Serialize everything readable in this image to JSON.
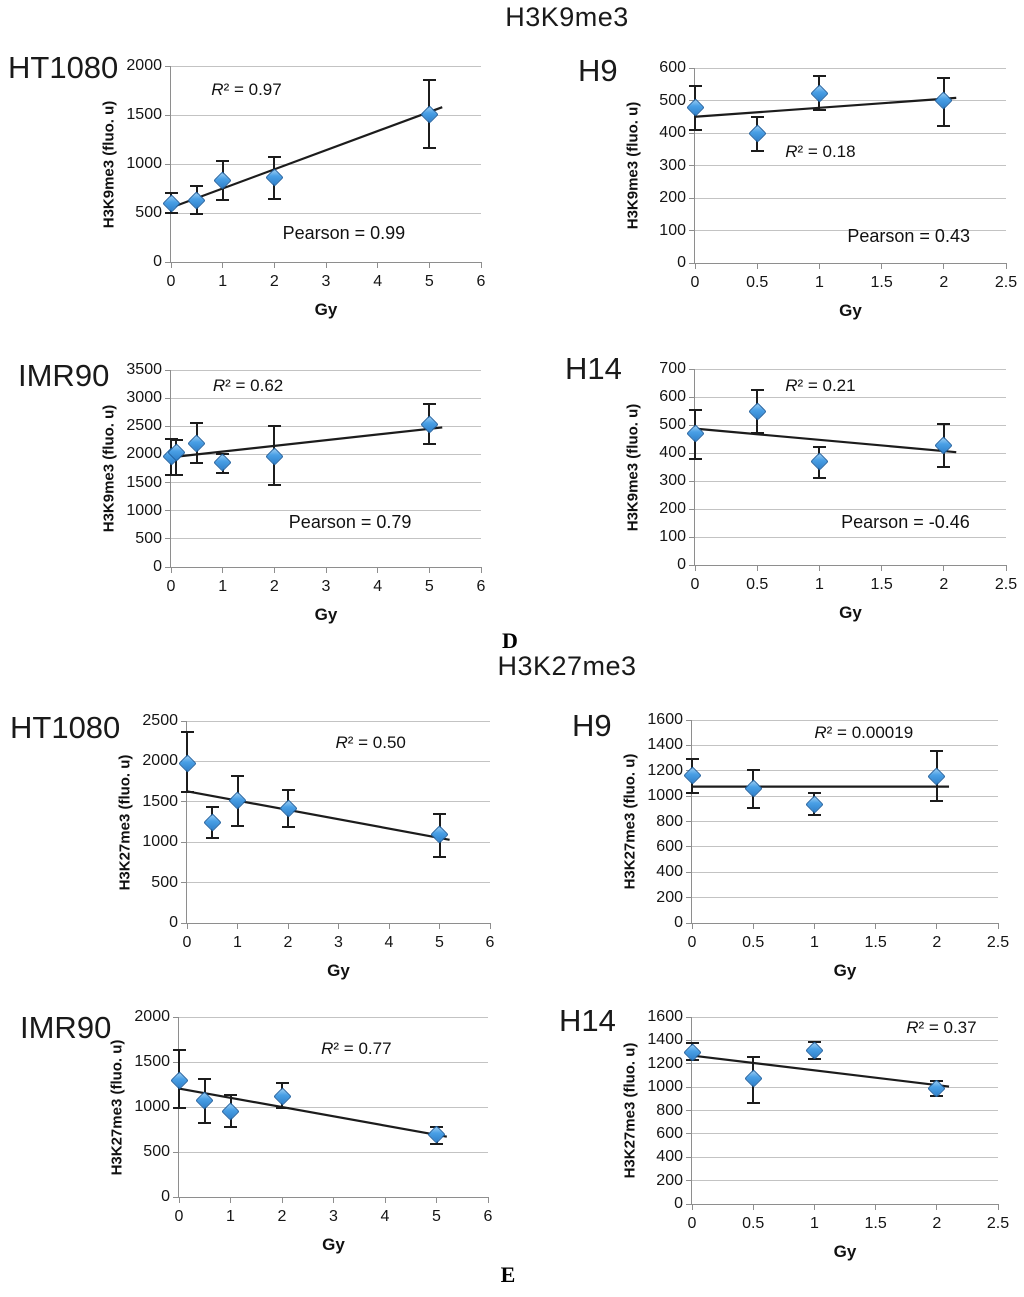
{
  "panels": [
    {
      "title": "H3K9me3",
      "section_label": "D"
    },
    {
      "title": "H3K27me3",
      "section_label": "E"
    }
  ],
  "colors": {
    "marker_fill": "#4aa0e6",
    "marker_border": "#1f5f9e",
    "gridline": "#c3c3c3",
    "axis": "#8e8e8e",
    "trendline": "#1c1c1c",
    "error_bar": "#1c1c1c"
  },
  "chart_data": [
    {
      "type": "scatter",
      "panel": "D",
      "cell_line": "HT1080",
      "xlabel": "Gy",
      "ylabel": "H3K9me3 (fluo. u)",
      "xlim": [
        0,
        6
      ],
      "ylim": [
        0,
        2000
      ],
      "xticks": [
        0,
        1,
        2,
        3,
        4,
        5,
        6
      ],
      "yticks": [
        0,
        500,
        1000,
        1500,
        2000
      ],
      "r2_label": "R² = 0.97",
      "pearson_label": "Pearson = 0.99",
      "points": [
        {
          "x": 0,
          "y": 600,
          "err_up": 105,
          "err_dn": 105
        },
        {
          "x": 0.5,
          "y": 625,
          "err_up": 150,
          "err_dn": 140
        },
        {
          "x": 1,
          "y": 830,
          "err_up": 200,
          "err_dn": 200
        },
        {
          "x": 2,
          "y": 860,
          "err_up": 215,
          "err_dn": 215
        },
        {
          "x": 5,
          "y": 1510,
          "err_up": 350,
          "err_dn": 345
        }
      ],
      "trendline": {
        "x1": 0,
        "y1": 555,
        "x2": 5.25,
        "y2": 1580
      }
    },
    {
      "type": "scatter",
      "panel": "D",
      "cell_line": "H9",
      "xlabel": "Gy",
      "ylabel": "H3K9me3 (fluo. u)",
      "xlim": [
        0,
        2.5
      ],
      "ylim": [
        0,
        600
      ],
      "xticks": [
        0,
        0.5,
        1,
        1.5,
        2,
        2.5
      ],
      "yticks": [
        0,
        100,
        200,
        300,
        400,
        500,
        600
      ],
      "r2_label": "R² = 0.18",
      "pearson_label": "Pearson = 0.43",
      "points": [
        {
          "x": 0,
          "y": 480,
          "err_up": 65,
          "err_dn": 70
        },
        {
          "x": 0.5,
          "y": 398,
          "err_up": 52,
          "err_dn": 52
        },
        {
          "x": 1,
          "y": 522,
          "err_up": 52,
          "err_dn": 52
        },
        {
          "x": 2,
          "y": 500,
          "err_up": 70,
          "err_dn": 78
        }
      ],
      "trendline": {
        "x1": 0,
        "y1": 450,
        "x2": 2.1,
        "y2": 508
      }
    },
    {
      "type": "scatter",
      "panel": "D",
      "cell_line": "IMR90",
      "xlabel": "Gy",
      "ylabel": "H3K9me3 (fluo. u)",
      "xlim": [
        0,
        6
      ],
      "ylim": [
        0,
        3500
      ],
      "xticks": [
        0,
        1,
        2,
        3,
        4,
        5,
        6
      ],
      "yticks": [
        0,
        500,
        1000,
        1500,
        2000,
        2500,
        3000,
        3500
      ],
      "r2_label": "R² = 0.62",
      "pearson_label": "Pearson = 0.79",
      "points": [
        {
          "x": 0,
          "y": 1960,
          "err_up": 320,
          "err_dn": 320
        },
        {
          "x": 0.1,
          "y": 2040,
          "err_up": 215,
          "err_dn": 410
        },
        {
          "x": 0.5,
          "y": 2200,
          "err_up": 360,
          "err_dn": 360
        },
        {
          "x": 1,
          "y": 1860,
          "err_up": 150,
          "err_dn": 190
        },
        {
          "x": 2,
          "y": 1970,
          "err_up": 540,
          "err_dn": 520
        },
        {
          "x": 5,
          "y": 2530,
          "err_up": 370,
          "err_dn": 340
        }
      ],
      "trendline": {
        "x1": 0,
        "y1": 1950,
        "x2": 5.25,
        "y2": 2480
      }
    },
    {
      "type": "scatter",
      "panel": "D",
      "cell_line": "H14",
      "xlabel": "Gy",
      "ylabel": "H3K9me3 (fluo. u)",
      "xlim": [
        0,
        2.5
      ],
      "ylim": [
        0,
        700
      ],
      "xticks": [
        0,
        0.5,
        1,
        1.5,
        2,
        2.5
      ],
      "yticks": [
        0,
        100,
        200,
        300,
        400,
        500,
        600,
        700
      ],
      "r2_label": "R² = 0.21",
      "pearson_label": "Pearson = -0.46",
      "points": [
        {
          "x": 0,
          "y": 468,
          "err_up": 85,
          "err_dn": 90
        },
        {
          "x": 0.5,
          "y": 548,
          "err_up": 78,
          "err_dn": 78
        },
        {
          "x": 1,
          "y": 368,
          "err_up": 55,
          "err_dn": 58
        },
        {
          "x": 2,
          "y": 427,
          "err_up": 76,
          "err_dn": 76
        }
      ],
      "trendline": {
        "x1": 0,
        "y1": 487,
        "x2": 2.1,
        "y2": 403
      }
    },
    {
      "type": "scatter",
      "panel": "E",
      "cell_line": "HT1080",
      "xlabel": "Gy",
      "ylabel": "H3K27me3 (fluo. u)",
      "xlim": [
        0,
        6
      ],
      "ylim": [
        0,
        2500
      ],
      "xticks": [
        0,
        1,
        2,
        3,
        4,
        5,
        6
      ],
      "yticks": [
        0,
        500,
        1000,
        1500,
        2000,
        2500
      ],
      "r2_label": "R² = 0.50",
      "points": [
        {
          "x": 0,
          "y": 1975,
          "err_up": 390,
          "err_dn": 350
        },
        {
          "x": 0.5,
          "y": 1245,
          "err_up": 195,
          "err_dn": 195
        },
        {
          "x": 1,
          "y": 1520,
          "err_up": 295,
          "err_dn": 315
        },
        {
          "x": 2,
          "y": 1420,
          "err_up": 225,
          "err_dn": 230
        },
        {
          "x": 5,
          "y": 1090,
          "err_up": 265,
          "err_dn": 275
        }
      ],
      "trendline": {
        "x1": 0,
        "y1": 1630,
        "x2": 5.2,
        "y2": 1030
      }
    },
    {
      "type": "scatter",
      "panel": "E",
      "cell_line": "H9",
      "xlabel": "Gy",
      "ylabel": "H3K27me3 (fluo. u)",
      "xlim": [
        0,
        2.5
      ],
      "ylim": [
        0,
        1600
      ],
      "xticks": [
        0,
        0.5,
        1,
        1.5,
        2,
        2.5
      ],
      "yticks": [
        0,
        200,
        400,
        600,
        800,
        1000,
        1200,
        1400,
        1600
      ],
      "r2_label": "R² = 0.00019",
      "points": [
        {
          "x": 0,
          "y": 1165,
          "err_up": 130,
          "err_dn": 140
        },
        {
          "x": 0.5,
          "y": 1060,
          "err_up": 145,
          "err_dn": 150
        },
        {
          "x": 1,
          "y": 935,
          "err_up": 90,
          "err_dn": 85
        },
        {
          "x": 2,
          "y": 1155,
          "err_up": 200,
          "err_dn": 190
        }
      ],
      "trendline": {
        "x1": 0,
        "y1": 1075,
        "x2": 2.1,
        "y2": 1075
      }
    },
    {
      "type": "scatter",
      "panel": "E",
      "cell_line": "IMR90",
      "xlabel": "Gy",
      "ylabel": "H3K27me3 (fluo. u)",
      "xlim": [
        0,
        6
      ],
      "ylim": [
        0,
        2000
      ],
      "xticks": [
        0,
        1,
        2,
        3,
        4,
        5,
        6
      ],
      "yticks": [
        0,
        500,
        1000,
        1500,
        2000
      ],
      "r2_label": "R² = 0.77",
      "points": [
        {
          "x": 0,
          "y": 1300,
          "err_up": 330,
          "err_dn": 315
        },
        {
          "x": 0.5,
          "y": 1070,
          "err_up": 240,
          "err_dn": 250
        },
        {
          "x": 1,
          "y": 950,
          "err_up": 185,
          "err_dn": 175
        },
        {
          "x": 2,
          "y": 1115,
          "err_up": 155,
          "err_dn": 130
        },
        {
          "x": 5,
          "y": 690,
          "err_up": 90,
          "err_dn": 100
        }
      ],
      "trendline": {
        "x1": 0,
        "y1": 1205,
        "x2": 5.2,
        "y2": 670
      }
    },
    {
      "type": "scatter",
      "panel": "E",
      "cell_line": "H14",
      "xlabel": "Gy",
      "ylabel": "H3K27me3 (fluo. u)",
      "xlim": [
        0,
        2.5
      ],
      "ylim": [
        0,
        1600
      ],
      "xticks": [
        0,
        0.5,
        1,
        1.5,
        2,
        2.5
      ],
      "yticks": [
        0,
        200,
        400,
        600,
        800,
        1000,
        1200,
        1400,
        1600
      ],
      "r2_label": "R² = 0.37",
      "points": [
        {
          "x": 0,
          "y": 1300,
          "err_up": 75,
          "err_dn": 70
        },
        {
          "x": 0.5,
          "y": 1070,
          "err_up": 190,
          "err_dn": 205
        },
        {
          "x": 1,
          "y": 1315,
          "err_up": 70,
          "err_dn": 75
        },
        {
          "x": 2,
          "y": 985,
          "err_up": 70,
          "err_dn": 65
        }
      ],
      "trendline": {
        "x1": 0,
        "y1": 1270,
        "x2": 2.1,
        "y2": 1005
      }
    }
  ]
}
